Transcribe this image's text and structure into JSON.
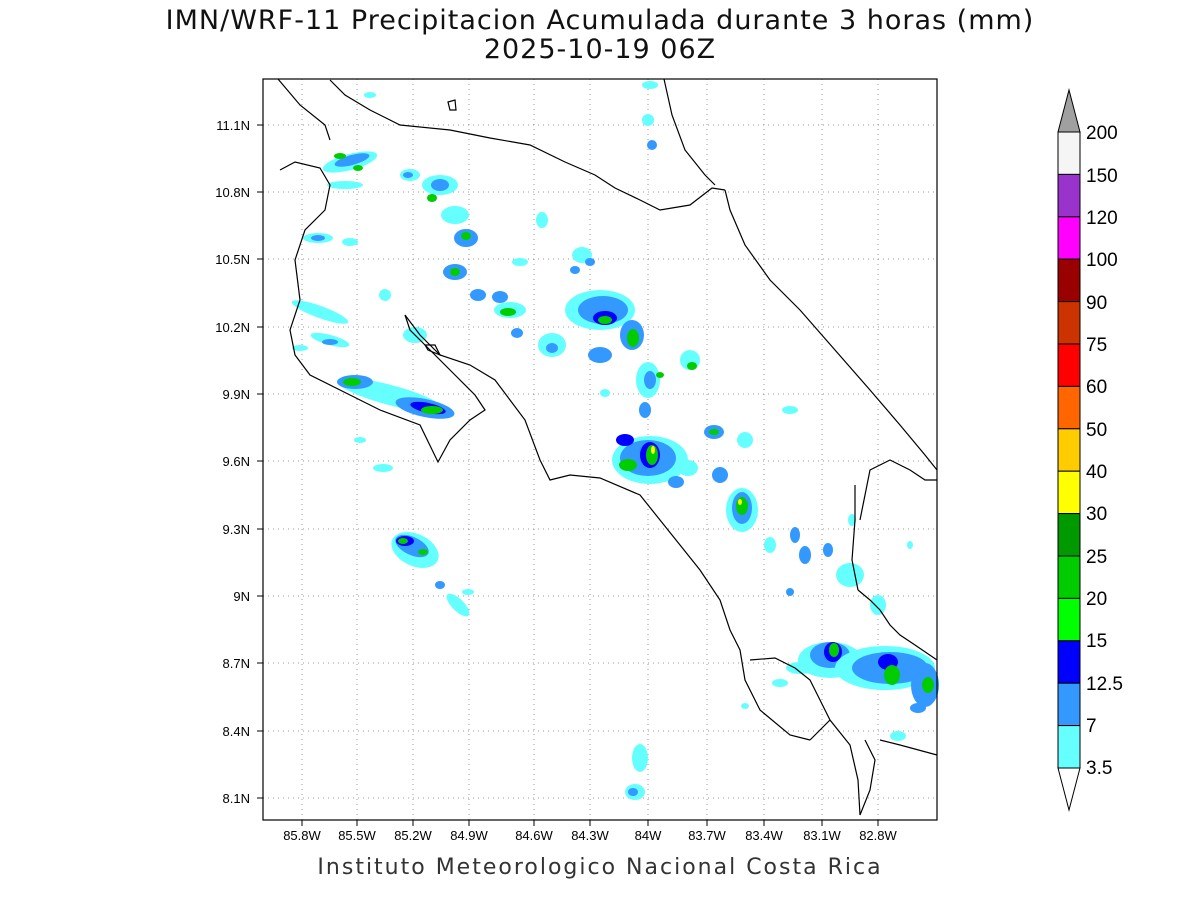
{
  "title_line1": "IMN/WRF-11 Precipitacion Acumulada durante 3 horas (mm)",
  "title_line2": "2025-10-19 06Z",
  "footer": "Instituto Meteorologico Nacional Costa Rica",
  "map": {
    "lat_ticks": [
      "11.1N",
      "10.8N",
      "10.5N",
      "10.2N",
      "9.9N",
      "9.6N",
      "9.3N",
      "9N",
      "8.7N",
      "8.4N",
      "8.1N"
    ],
    "lon_ticks": [
      "85.8W",
      "85.5W",
      "85.2W",
      "84.9W",
      "84.6W",
      "84.3W",
      "84W",
      "83.7W",
      "83.4W",
      "83.1W",
      "82.8W"
    ]
  },
  "colorbar": {
    "labels": [
      "200",
      "150",
      "120",
      "100",
      "90",
      "75",
      "60",
      "50",
      "40",
      "30",
      "25",
      "20",
      "15",
      "12.5",
      "7",
      "3.5"
    ],
    "colors": [
      "#f5f5f5",
      "#9933cc",
      "#ff00ff",
      "#990000",
      "#cc3300",
      "#ff0000",
      "#ff6600",
      "#ffcc00",
      "#ffff00",
      "#009900",
      "#00cc00",
      "#00ff00",
      "#0000ff",
      "#3399ff",
      "#66ffff"
    ],
    "top_arrow_color": "#a0a0a0",
    "bottom_arrow_color": "#ffffff"
  }
}
